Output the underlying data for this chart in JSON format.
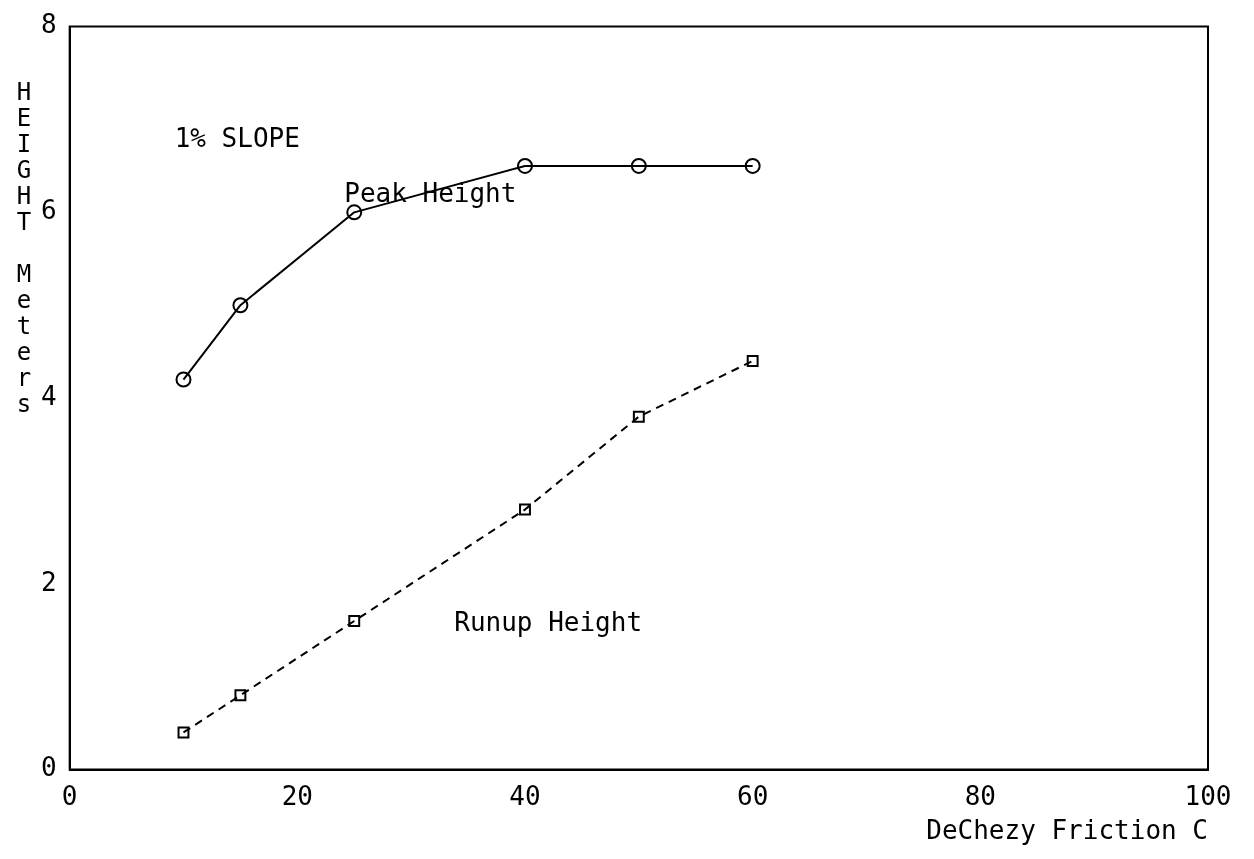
{
  "chart_data": {
    "type": "line",
    "xlabel": "DeChezy Friction C",
    "ylabel": "HEIGHT Meters",
    "annotations": [
      "1% SLOPE"
    ],
    "xlim": [
      0,
      100
    ],
    "xticks": [
      0,
      20,
      40,
      60,
      80,
      100
    ],
    "ylim": [
      0,
      8
    ],
    "yticks": [
      0,
      2,
      4,
      6,
      8
    ],
    "grid": false,
    "legend": false,
    "series": [
      {
        "name": "Peak Height",
        "color": "#000000",
        "x": [
          10,
          15,
          25,
          40,
          50,
          60
        ],
        "values": [
          4.2,
          5.0,
          6.0,
          6.5,
          6.5,
          6.5
        ],
        "marker": "circle",
        "line_style": "solid"
      },
      {
        "name": "Runup Height",
        "color": "#000000",
        "x": [
          10,
          15,
          25,
          40,
          50,
          60
        ],
        "values": [
          0.4,
          0.8,
          1.6,
          2.8,
          3.8,
          4.4
        ],
        "marker": "square",
        "line_style": "dashed"
      }
    ]
  }
}
